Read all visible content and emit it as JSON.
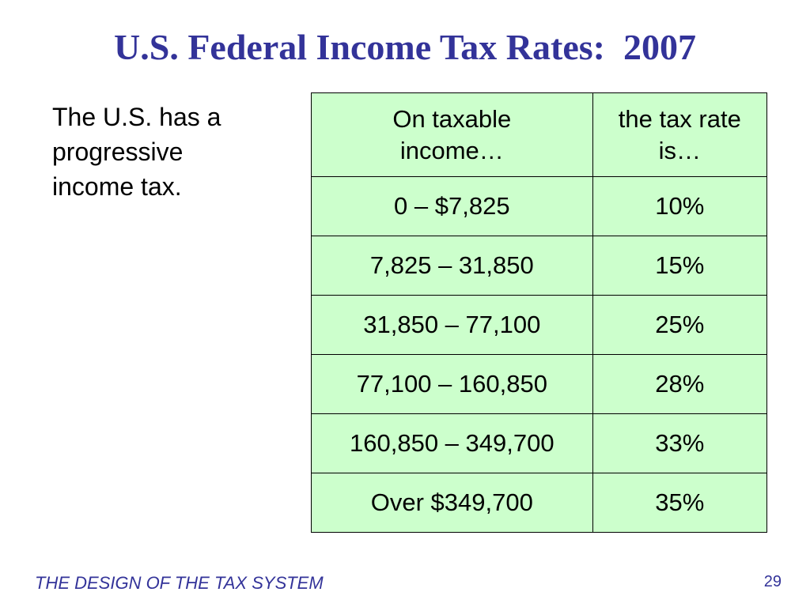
{
  "slide": {
    "title": "U.S. Federal Income Tax Rates:  2007",
    "intro_text": "The U.S. has a\nprogressive\nincome tax.",
    "footer": "THE DESIGN OF THE TAX SYSTEM",
    "page_number": "29"
  },
  "table": {
    "headers": {
      "income": "On taxable\nincome…",
      "rate": "the tax rate\nis…"
    },
    "rows": [
      {
        "income": "0 – $7,825",
        "rate": "10%"
      },
      {
        "income": "7,825 – 31,850",
        "rate": "15%"
      },
      {
        "income": "31,850 – 77,100",
        "rate": "25%"
      },
      {
        "income": "77,100 – 160,850",
        "rate": "28%"
      },
      {
        "income": "160,850 – 349,700",
        "rate": "33%"
      },
      {
        "income": "Over $349,700",
        "rate": "35%"
      }
    ]
  },
  "colors": {
    "title": "#333399",
    "table_fill": "#ccffcc",
    "footer": "#333399"
  }
}
